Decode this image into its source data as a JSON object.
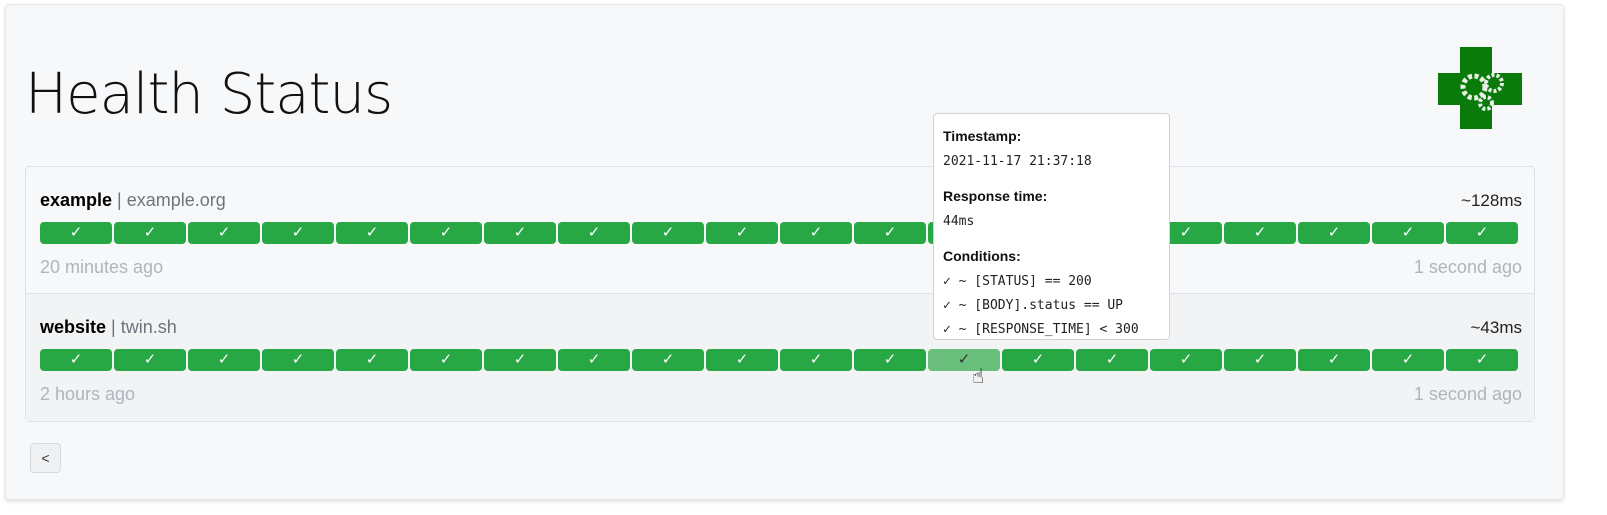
{
  "title": "Health Status",
  "services": [
    {
      "name": "example",
      "host": "example.org",
      "response_time": "~128ms",
      "oldest": "20 minutes ago",
      "newest": "1 second ago",
      "results": [
        "✓",
        "✓",
        "✓",
        "✓",
        "✓",
        "✓",
        "✓",
        "✓",
        "✓",
        "✓",
        "✓",
        "✓",
        "✓",
        "✓",
        "✓",
        "✓",
        "✓",
        "✓",
        "✓",
        "✓"
      ]
    },
    {
      "name": "website",
      "host": "twin.sh",
      "response_time": "~43ms",
      "oldest": "2 hours ago",
      "newest": "1 second ago",
      "results": [
        "✓",
        "✓",
        "✓",
        "✓",
        "✓",
        "✓",
        "✓",
        "✓",
        "✓",
        "✓",
        "✓",
        "✓",
        "✓",
        "✓",
        "✓",
        "✓",
        "✓",
        "✓",
        "✓",
        "✓"
      ],
      "hovered_index": 12
    }
  ],
  "tooltip": {
    "timestamp_label": "Timestamp:",
    "timestamp": "2021-11-17 21:37:18",
    "response_label": "Response time:",
    "response": "44ms",
    "conditions_label": "Conditions:",
    "conditions": [
      "✓ ~ [STATUS] == 200",
      "✓ ~ [BODY].status == UP",
      "✓ ~ [RESPONSE_TIME] < 300"
    ]
  },
  "pagination": {
    "prev": "<"
  },
  "colors": {
    "success": "#28a745",
    "logo": "#0a7a0a"
  }
}
